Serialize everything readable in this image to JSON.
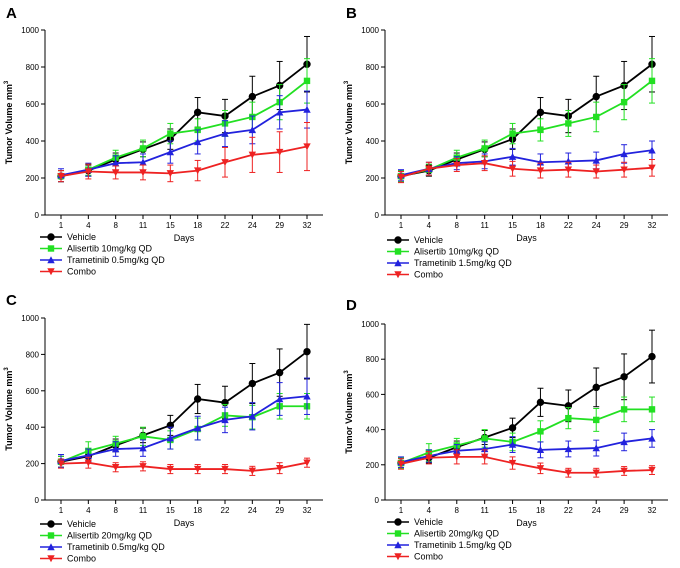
{
  "chart_data": [
    {
      "type": "line",
      "panel_label": "A",
      "ylabel": "Tumor Volume mm",
      "ylabel_sup": "3",
      "xlabel": "Days",
      "categories": [
        "1",
        "4",
        "8",
        "11",
        "15",
        "18",
        "22",
        "24",
        "29",
        "32"
      ],
      "ylim": [
        0,
        1000
      ],
      "yticks": [
        0,
        200,
        400,
        600,
        800,
        1000
      ],
      "series": [
        {
          "name": "Vehicle",
          "color": "#000000",
          "marker": "circle",
          "values": [
            210,
            240,
            300,
            355,
            410,
            555,
            535,
            640,
            700,
            815
          ],
          "errors": [
            30,
            30,
            35,
            40,
            55,
            80,
            90,
            110,
            130,
            150
          ]
        },
        {
          "name": "Alisertib 10mg/kg QD",
          "color": "#22e022",
          "marker": "square",
          "values": [
            210,
            245,
            310,
            360,
            440,
            460,
            495,
            530,
            610,
            725
          ],
          "errors": [
            30,
            30,
            40,
            45,
            55,
            60,
            70,
            80,
            95,
            120
          ]
        },
        {
          "name": "Trametinib 0.5mg/kg QD",
          "color": "#2222dd",
          "marker": "triangle",
          "values": [
            215,
            245,
            280,
            285,
            340,
            395,
            440,
            460,
            555,
            570
          ],
          "errors": [
            35,
            35,
            40,
            45,
            60,
            65,
            70,
            75,
            90,
            100
          ]
        },
        {
          "name": "Combo",
          "color": "#ee2222",
          "marker": "triangle-down",
          "values": [
            210,
            235,
            230,
            230,
            225,
            240,
            285,
            325,
            340,
            370
          ],
          "errors": [
            30,
            40,
            35,
            40,
            45,
            55,
            80,
            95,
            110,
            130
          ]
        }
      ]
    },
    {
      "type": "line",
      "panel_label": "B",
      "ylabel": "Tumor Volume mm",
      "ylabel_sup": "3",
      "xlabel": "Days",
      "categories": [
        "1",
        "4",
        "8",
        "11",
        "15",
        "18",
        "22",
        "24",
        "29",
        "32"
      ],
      "ylim": [
        0,
        1000
      ],
      "yticks": [
        0,
        200,
        400,
        600,
        800,
        1000
      ],
      "series": [
        {
          "name": "Vehicle",
          "color": "#000000",
          "marker": "circle",
          "values": [
            210,
            240,
            300,
            355,
            410,
            555,
            535,
            640,
            700,
            815
          ],
          "errors": [
            30,
            30,
            35,
            40,
            55,
            80,
            90,
            110,
            130,
            150
          ]
        },
        {
          "name": "Alisertib 10mg/kg QD",
          "color": "#22e022",
          "marker": "square",
          "values": [
            210,
            245,
            310,
            360,
            440,
            460,
            495,
            530,
            610,
            725
          ],
          "errors": [
            30,
            30,
            40,
            45,
            55,
            60,
            70,
            80,
            95,
            120
          ]
        },
        {
          "name": "Trametinib 1.5mg/kg QD",
          "color": "#2222dd",
          "marker": "triangle",
          "values": [
            215,
            250,
            280,
            290,
            315,
            285,
            290,
            295,
            330,
            350
          ],
          "errors": [
            30,
            35,
            35,
            40,
            45,
            45,
            45,
            45,
            50,
            50
          ]
        },
        {
          "name": "Combo",
          "color": "#ee2222",
          "marker": "triangle-down",
          "values": [
            205,
            250,
            270,
            280,
            250,
            240,
            245,
            235,
            245,
            255
          ],
          "errors": [
            30,
            35,
            35,
            40,
            40,
            40,
            40,
            35,
            40,
            45
          ]
        }
      ]
    },
    {
      "type": "line",
      "panel_label": "C",
      "ylabel": "Tumor Volume mm",
      "ylabel_sup": "3",
      "xlabel": "Days",
      "categories": [
        "1",
        "4",
        "8",
        "11",
        "15",
        "18",
        "22",
        "24",
        "29",
        "32"
      ],
      "ylim": [
        0,
        1000
      ],
      "yticks": [
        0,
        200,
        400,
        600,
        800,
        1000
      ],
      "series": [
        {
          "name": "Vehicle",
          "color": "#000000",
          "marker": "circle",
          "values": [
            210,
            240,
            300,
            355,
            410,
            555,
            535,
            640,
            700,
            815
          ],
          "errors": [
            30,
            30,
            35,
            40,
            55,
            80,
            90,
            110,
            130,
            150
          ]
        },
        {
          "name": "Alisertib 20mg/kg QD",
          "color": "#22e022",
          "marker": "square",
          "values": [
            210,
            270,
            310,
            350,
            330,
            390,
            465,
            455,
            515,
            515
          ],
          "errors": [
            30,
            50,
            40,
            50,
            50,
            60,
            60,
            65,
            70,
            70
          ]
        },
        {
          "name": "Trametinib 0.5mg/kg QD",
          "color": "#2222dd",
          "marker": "triangle",
          "values": [
            215,
            245,
            280,
            285,
            340,
            395,
            440,
            460,
            555,
            570
          ],
          "errors": [
            35,
            35,
            40,
            45,
            60,
            65,
            70,
            75,
            90,
            100
          ]
        },
        {
          "name": "Combo",
          "color": "#ee2222",
          "marker": "triangle-down",
          "values": [
            200,
            205,
            180,
            185,
            170,
            170,
            170,
            160,
            175,
            205
          ],
          "errors": [
            25,
            30,
            25,
            25,
            25,
            25,
            25,
            25,
            30,
            25
          ]
        }
      ]
    },
    {
      "type": "line",
      "panel_label": "D",
      "ylabel": "Tumor Volume mm",
      "ylabel_sup": "3",
      "xlabel": "Days",
      "categories": [
        "1",
        "4",
        "8",
        "11",
        "15",
        "18",
        "22",
        "24",
        "29",
        "32"
      ],
      "ylim": [
        0,
        1000
      ],
      "yticks": [
        0,
        200,
        400,
        600,
        800,
        1000
      ],
      "series": [
        {
          "name": "Vehicle",
          "color": "#000000",
          "marker": "circle",
          "values": [
            210,
            240,
            300,
            355,
            410,
            555,
            535,
            640,
            700,
            815
          ],
          "errors": [
            30,
            30,
            35,
            40,
            55,
            80,
            90,
            110,
            130,
            150
          ]
        },
        {
          "name": "Alisertib 20mg/kg QD",
          "color": "#22e022",
          "marker": "square",
          "values": [
            210,
            270,
            310,
            350,
            330,
            390,
            465,
            455,
            515,
            515
          ],
          "errors": [
            30,
            50,
            40,
            50,
            50,
            60,
            60,
            65,
            70,
            70
          ]
        },
        {
          "name": "Trametinib 1.5mg/kg QD",
          "color": "#2222dd",
          "marker": "triangle",
          "values": [
            215,
            250,
            280,
            290,
            315,
            285,
            290,
            295,
            330,
            350
          ],
          "errors": [
            30,
            35,
            35,
            40,
            45,
            45,
            45,
            45,
            50,
            50
          ]
        },
        {
          "name": "Combo",
          "color": "#ee2222",
          "marker": "triangle-down",
          "values": [
            205,
            240,
            245,
            245,
            210,
            180,
            155,
            155,
            165,
            170
          ],
          "errors": [
            30,
            35,
            40,
            40,
            35,
            30,
            25,
            25,
            25,
            25
          ]
        }
      ]
    }
  ]
}
